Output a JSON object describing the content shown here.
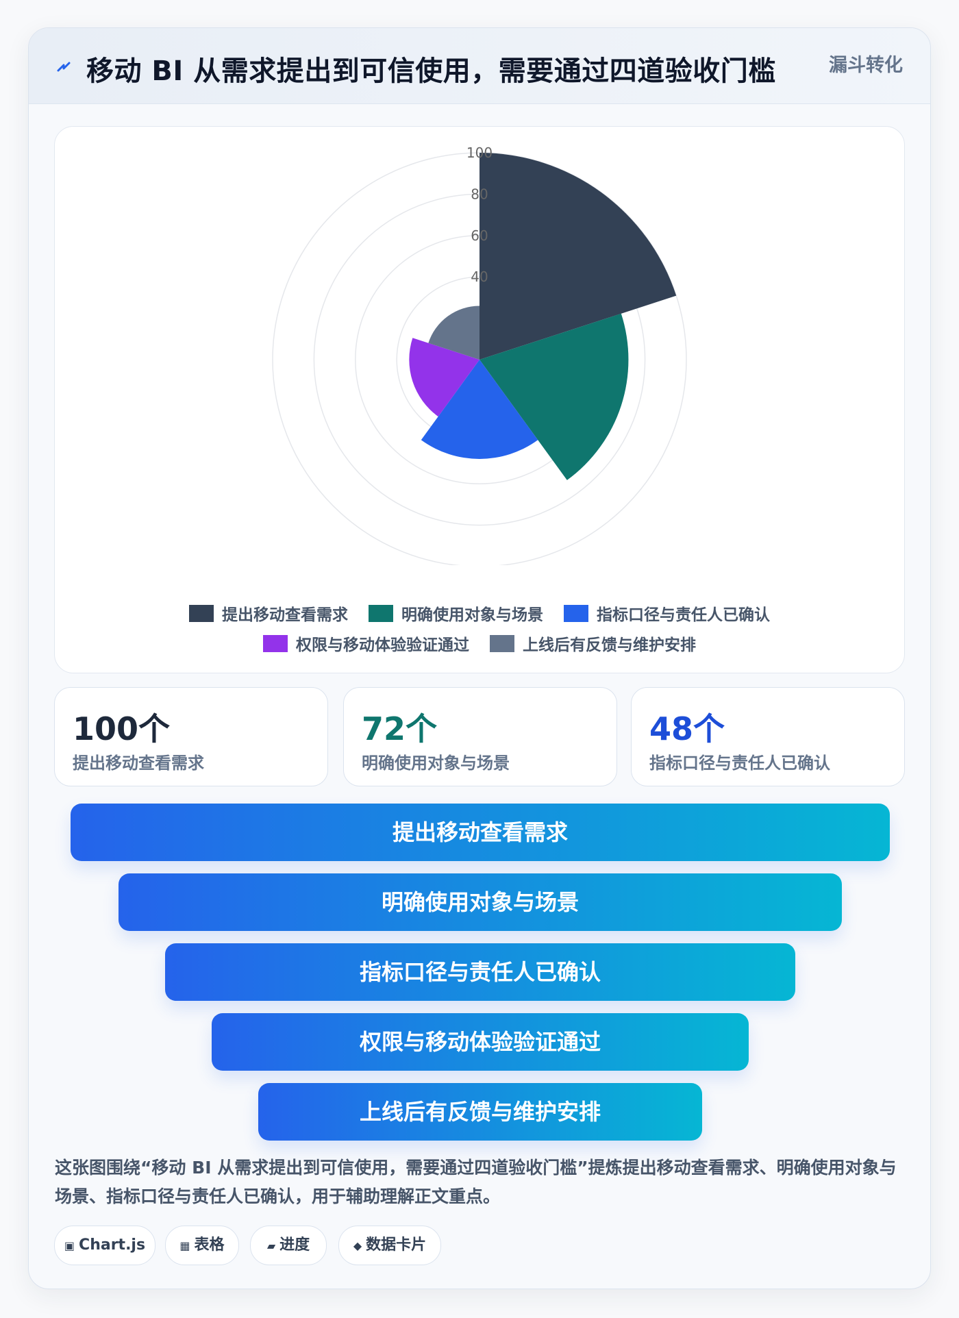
{
  "header": {
    "title": "移动 BI 从需求提出到可信使用，需要通过四道验收门槛",
    "tag": "漏斗转化",
    "icon": "lightning-bolt-icon"
  },
  "chart_data": {
    "type": "polarArea",
    "categories": [
      "提出移动查看需求",
      "明确使用对象与场景",
      "指标口径与责任人已确认",
      "权限与移动体验验证通过",
      "上线后有反馈与维护安排"
    ],
    "values": [
      100,
      72,
      48,
      34,
      26
    ],
    "colors": [
      "#334155",
      "#0f766e",
      "#2563eb",
      "#9333ea",
      "#64748b"
    ],
    "r_ticks": [
      "100",
      "80",
      "60",
      "40"
    ],
    "r_max": 100,
    "legend_position": "bottom",
    "grid": true
  },
  "stats": [
    {
      "value": "100个",
      "label": "提出移动查看需求",
      "color": "#1e293b"
    },
    {
      "value": "72个",
      "label": "明确使用对象与场景",
      "color": "#0f766e"
    },
    {
      "value": "48个",
      "label": "指标口径与责任人已确认",
      "color": "#1d4ed8"
    }
  ],
  "funnel": [
    "提出移动查看需求",
    "明确使用对象与场景",
    "指标口径与责任人已确认",
    "权限与移动体验验证通过",
    "上线后有反馈与维护安排"
  ],
  "summary": "这张图围绕“移动 BI 从需求提出到可信使用，需要通过四道验收门槛”提炼提出移动查看需求、明确使用对象与场景、指标口径与责任人已确认，用于辅助理解正文重点。",
  "pills": [
    {
      "icon": "▣",
      "icon_name": "chart-icon",
      "label": "Chart.js"
    },
    {
      "icon": "▦",
      "icon_name": "table-icon",
      "label": "表格"
    },
    {
      "icon": "▰",
      "icon_name": "progress-icon",
      "label": "进度"
    },
    {
      "icon": "◆",
      "icon_name": "data-card-icon",
      "label": "数据卡片"
    }
  ]
}
